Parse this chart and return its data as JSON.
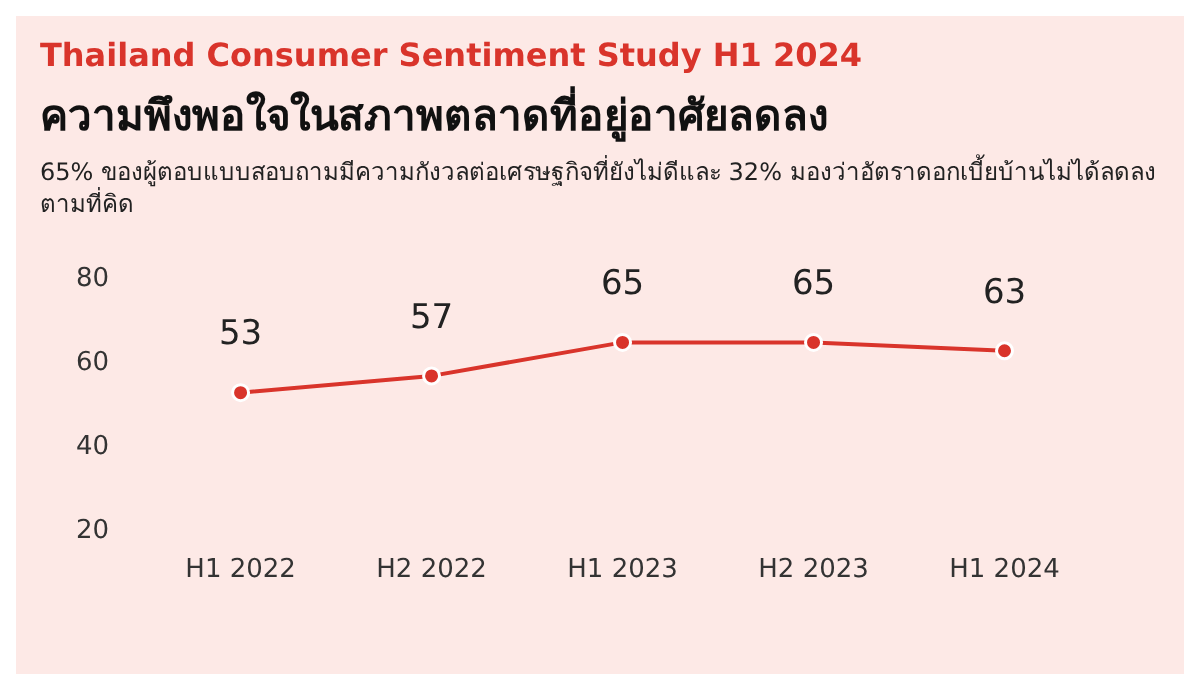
{
  "chart_data": {
    "type": "line",
    "title": "Thailand Consumer Sentiment Study H1 2024",
    "subtitle": "ความพึงพอใจในสภาพตลาดที่อยู่อาศัยลดลง",
    "annotations": [
      "65% ของผู้ตอบแบบสอบถามมีความกังวลต่อเศรษฐกิจที่ยังไม่ดีและ 32% มองว่าอัตราดอกเบี้ยบ้านไม่ได้ลดลงตามที่คิด"
    ],
    "categories": [
      "H1 2022",
      "H2 2022",
      "H1 2023",
      "H2 2023",
      "H1 2024"
    ],
    "series": [
      {
        "color": "#d9342b",
        "values": [
          53,
          57,
          65,
          65,
          63
        ]
      }
    ],
    "ylim": [
      20,
      80
    ],
    "yticks": [
      20,
      40,
      60,
      80
    ],
    "grid": false,
    "legend": false,
    "marker": "circle",
    "line_style": "solid",
    "data_labels": true
  }
}
